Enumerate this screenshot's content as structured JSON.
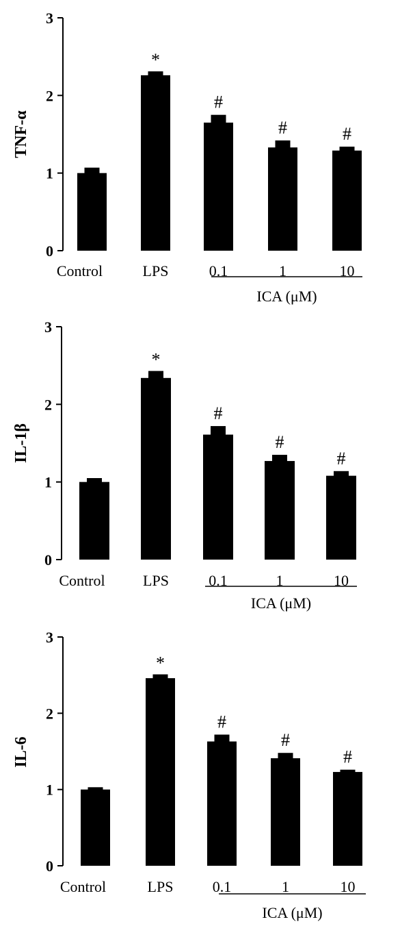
{
  "chart_data": [
    {
      "type": "bar",
      "ylabel": "TNF-α",
      "ylim": [
        0,
        3
      ],
      "yticks": [
        "0",
        "1",
        "2",
        "3"
      ],
      "categories": [
        "Control",
        "LPS",
        "0.1",
        "1",
        "10"
      ],
      "group_label": "ICA  (μM)",
      "values": [
        1.0,
        2.26,
        1.65,
        1.33,
        1.29
      ],
      "errors": [
        0.07,
        0.05,
        0.1,
        0.09,
        0.05
      ],
      "annotations": [
        "",
        "*",
        "#",
        "#",
        "#"
      ],
      "colors": {
        "bar": "#000000"
      }
    },
    {
      "type": "bar",
      "ylabel": "IL-1β",
      "ylim": [
        0,
        3
      ],
      "yticks": [
        "0",
        "1",
        "2",
        "3"
      ],
      "categories": [
        "Control",
        "LPS",
        "0.1",
        "1",
        "10"
      ],
      "group_label": "ICA  (μM)",
      "values": [
        1.0,
        2.34,
        1.61,
        1.27,
        1.08
      ],
      "errors": [
        0.05,
        0.09,
        0.11,
        0.08,
        0.06
      ],
      "annotations": [
        "",
        "*",
        "#",
        "#",
        "#"
      ],
      "colors": {
        "bar": "#000000"
      }
    },
    {
      "type": "bar",
      "ylabel": "IL-6",
      "ylim": [
        0,
        3
      ],
      "yticks": [
        "0",
        "1",
        "2",
        "3"
      ],
      "categories": [
        "Control",
        "LPS",
        "0.1",
        "1",
        "10"
      ],
      "group_label": "ICA  (μM)",
      "values": [
        1.0,
        2.46,
        1.63,
        1.41,
        1.23
      ],
      "errors": [
        0.03,
        0.05,
        0.09,
        0.07,
        0.03
      ],
      "annotations": [
        "",
        "*",
        "#",
        "#",
        "#"
      ],
      "colors": {
        "bar": "#000000"
      }
    }
  ]
}
